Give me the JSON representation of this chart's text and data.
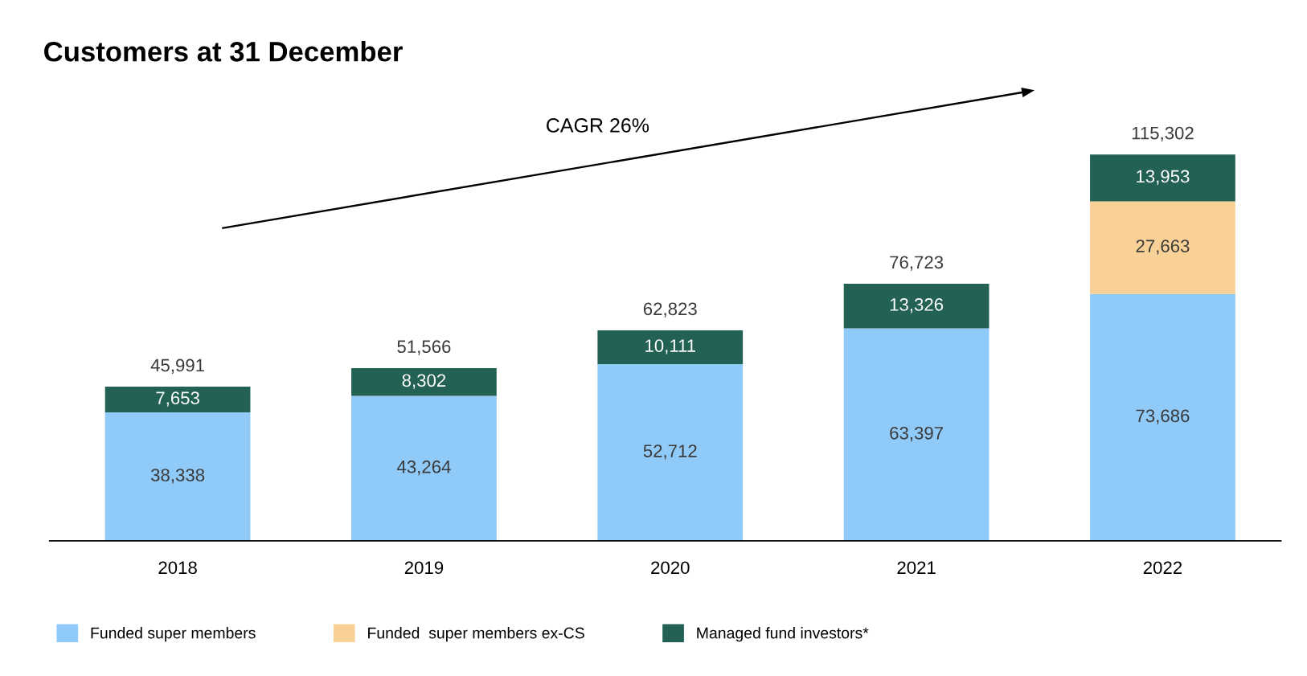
{
  "chart_data": {
    "type": "bar",
    "title": "Customers at 31 December",
    "stacked": true,
    "legend": "bottom",
    "grid": false,
    "categories": [
      "2018",
      "2019",
      "2020",
      "2021",
      "2022"
    ],
    "series": [
      {
        "name": "Funded super members",
        "color": "#90caf9",
        "values": [
          38338,
          43264,
          52712,
          63397,
          73686
        ],
        "value_labels": [
          "38,338",
          "43,264",
          "52,712",
          "63,397",
          "73,686"
        ]
      },
      {
        "name": "Funded  super members ex-CS",
        "color": "#f9d197",
        "values": [
          null,
          null,
          null,
          null,
          27663
        ],
        "value_labels": [
          null,
          null,
          null,
          null,
          "27,663"
        ]
      },
      {
        "name": "Managed fund investors*",
        "color": "#236154",
        "values": [
          7653,
          8302,
          10111,
          13326,
          13953
        ],
        "value_labels": [
          "7,653",
          "8,302",
          "10,111",
          "13,326",
          "13,953"
        ]
      }
    ],
    "totals": [
      "45,991",
      "51,566",
      "62,823",
      "76,723",
      "115,302"
    ],
    "annotations": [
      "CAGR 26%"
    ]
  }
}
